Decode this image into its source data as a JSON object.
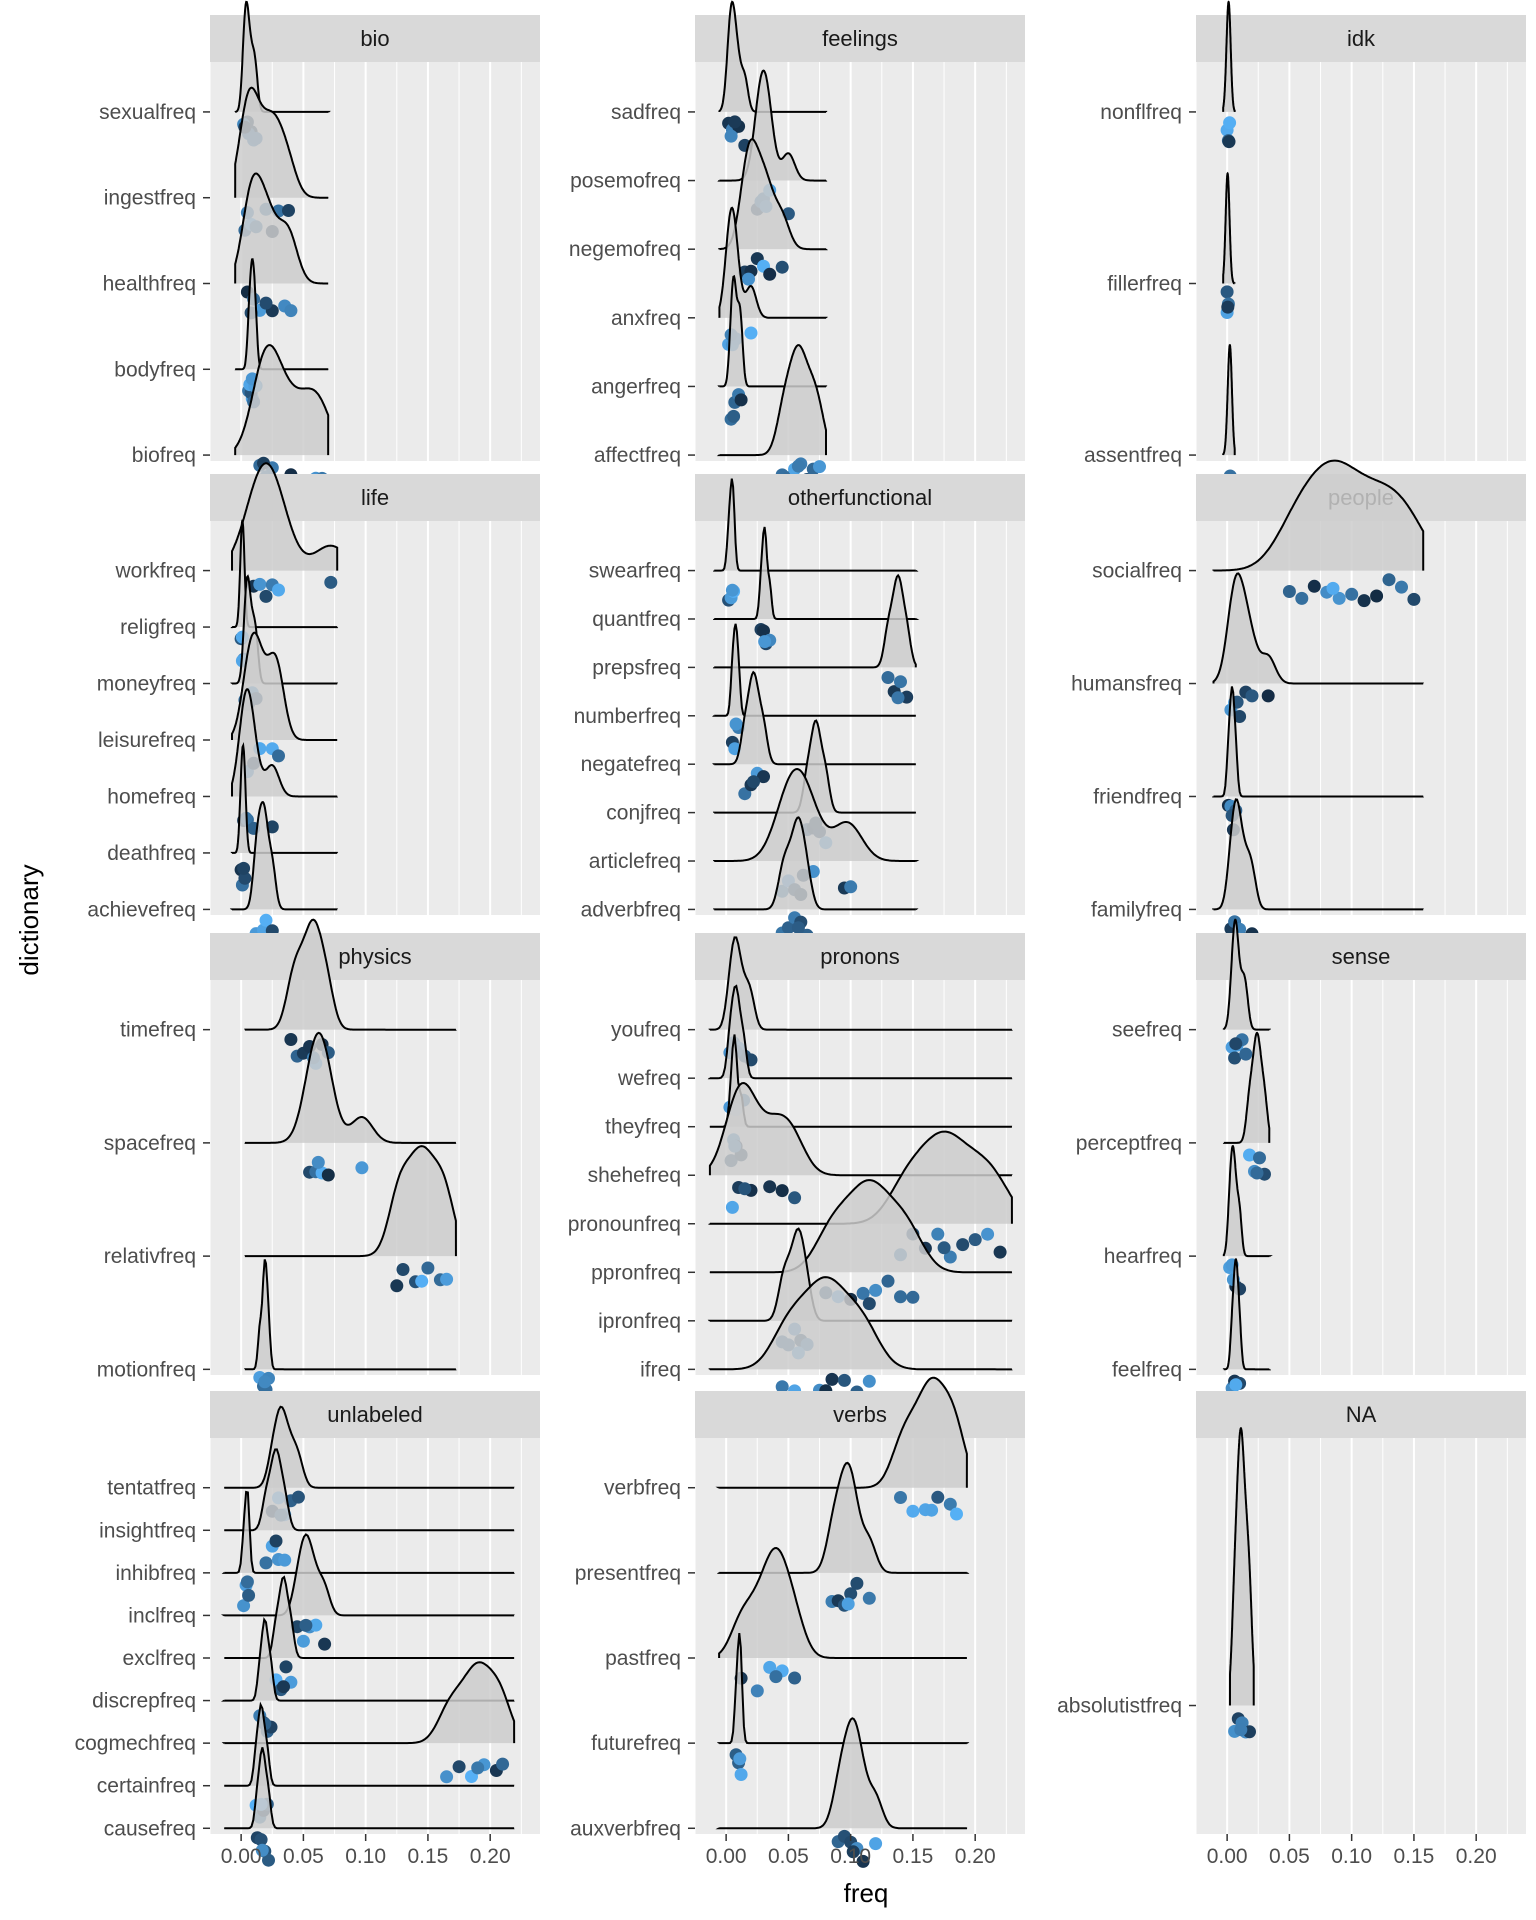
{
  "chart_data": {
    "type": "ridgeline",
    "xlabel": "freq",
    "ylabel": "dictionary",
    "xlim": [
      -0.025,
      0.24
    ],
    "x_ticks": [
      0.0,
      0.05,
      0.1,
      0.15,
      0.2
    ],
    "x_tick_labels": [
      "0.00",
      "0.05",
      "0.10",
      "0.15",
      "0.20"
    ],
    "grid": true,
    "colors": {
      "panel_bg": "#ebebeb",
      "strip_bg": "#d9d9d9",
      "grid": "#ffffff",
      "point_dark": "#132b43",
      "point_light": "#56b1f7",
      "ridge_fill": "#cccccc"
    },
    "facets": [
      {
        "name": "bio",
        "rows": [
          {
            "label": "sexualfreq",
            "x": [
              0.004,
              0.01,
              0.005,
              0.008,
              0.002,
              0.012,
              0.006,
              0.003
            ]
          },
          {
            "label": "ingestfreq",
            "x": [
              0.003,
              0.008,
              0.012,
              0.02,
              0.025,
              0.03,
              0.038,
              0.005
            ]
          },
          {
            "label": "healthfreq",
            "x": [
              0.005,
              0.01,
              0.015,
              0.025,
              0.035,
              0.04,
              0.008,
              0.02
            ]
          },
          {
            "label": "bodyfreq",
            "x": [
              0.006,
              0.009,
              0.012,
              0.008,
              0.01,
              0.007,
              0.011,
              0.009
            ]
          },
          {
            "label": "biofreq",
            "x": [
              0.015,
              0.02,
              0.025,
              0.03,
              0.04,
              0.05,
              0.06,
              0.065,
              0.018
            ]
          }
        ]
      },
      {
        "name": "feelings",
        "rows": [
          {
            "label": "sadfreq",
            "x": [
              0.002,
              0.005,
              0.01,
              0.015,
              0.004,
              0.007
            ]
          },
          {
            "label": "posemofreq",
            "x": [
              0.025,
              0.03,
              0.035,
              0.028,
              0.05,
              0.032
            ]
          },
          {
            "label": "negemofreq",
            "x": [
              0.015,
              0.02,
              0.025,
              0.03,
              0.035,
              0.045,
              0.018
            ]
          },
          {
            "label": "anxfreq",
            "x": [
              0.002,
              0.005,
              0.008,
              0.02,
              0.004
            ]
          },
          {
            "label": "angerfreq",
            "x": [
              0.004,
              0.007,
              0.01,
              0.012,
              0.006
            ]
          },
          {
            "label": "affectfreq",
            "x": [
              0.045,
              0.05,
              0.055,
              0.06,
              0.065,
              0.07,
              0.075,
              0.058
            ]
          }
        ]
      },
      {
        "name": "idk",
        "rows": [
          {
            "label": "nonflfreq",
            "x": [
              0.0,
              0.001,
              0.002,
              0.0015
            ]
          },
          {
            "label": "fillerfreq",
            "x": [
              0.0,
              0.001,
              0.0,
              0.0005
            ]
          },
          {
            "label": "assentfreq",
            "x": [
              0.001,
              0.002,
              0.003,
              0.0025
            ]
          }
        ]
      },
      {
        "name": "life",
        "rows": [
          {
            "label": "workfreq",
            "x": [
              0.01,
              0.015,
              0.02,
              0.025,
              0.03,
              0.072
            ]
          },
          {
            "label": "religfreq",
            "x": [
              0.0,
              0.001,
              0.002,
              0.001
            ]
          },
          {
            "label": "moneyfreq",
            "x": [
              0.003,
              0.006,
              0.009,
              0.012,
              0.005
            ]
          },
          {
            "label": "leisurefreq",
            "x": [
              0.005,
              0.01,
              0.015,
              0.025,
              0.03
            ]
          },
          {
            "label": "homefreq",
            "x": [
              0.002,
              0.005,
              0.01,
              0.025,
              0.004
            ]
          },
          {
            "label": "deathfreq",
            "x": [
              0.0,
              0.001,
              0.003,
              0.002
            ]
          },
          {
            "label": "achievefreq",
            "x": [
              0.012,
              0.015,
              0.018,
              0.02,
              0.025
            ]
          }
        ]
      },
      {
        "name": "otherfunctional",
        "rows": [
          {
            "label": "swearfreq",
            "x": [
              0.002,
              0.004,
              0.006,
              0.005
            ]
          },
          {
            "label": "quantfreq",
            "x": [
              0.028,
              0.03,
              0.032,
              0.035,
              0.031
            ]
          },
          {
            "label": "prepsfreq",
            "x": [
              0.13,
              0.135,
              0.14,
              0.145,
              0.138
            ]
          },
          {
            "label": "numberfreq",
            "x": [
              0.005,
              0.007,
              0.01,
              0.008
            ]
          },
          {
            "label": "negatefreq",
            "x": [
              0.015,
              0.02,
              0.025,
              0.03,
              0.022
            ]
          },
          {
            "label": "conjfreq",
            "x": [
              0.065,
              0.07,
              0.075,
              0.08,
              0.072
            ]
          },
          {
            "label": "articlefreq",
            "x": [
              0.045,
              0.05,
              0.055,
              0.06,
              0.07,
              0.095,
              0.1,
              0.062
            ]
          },
          {
            "label": "adverbfreq",
            "x": [
              0.045,
              0.05,
              0.055,
              0.06,
              0.065,
              0.058
            ]
          }
        ]
      },
      {
        "name": "people",
        "rows": [
          {
            "label": "socialfreq",
            "x": [
              0.05,
              0.06,
              0.07,
              0.08,
              0.09,
              0.1,
              0.11,
              0.12,
              0.13,
              0.14,
              0.15,
              0.085
            ]
          },
          {
            "label": "humansfreq",
            "x": [
              0.003,
              0.006,
              0.01,
              0.015,
              0.02,
              0.033,
              0.008
            ]
          },
          {
            "label": "friendfreq",
            "x": [
              0.001,
              0.003,
              0.005,
              0.007,
              0.004
            ]
          },
          {
            "label": "familyfreq",
            "x": [
              0.003,
              0.006,
              0.01,
              0.015,
              0.02,
              0.008
            ]
          }
        ]
      },
      {
        "name": "physics",
        "rows": [
          {
            "label": "timefreq",
            "x": [
              0.04,
              0.045,
              0.05,
              0.055,
              0.06,
              0.065,
              0.07,
              0.058
            ]
          },
          {
            "label": "spacefreq",
            "x": [
              0.055,
              0.06,
              0.065,
              0.07,
              0.097,
              0.062
            ]
          },
          {
            "label": "relativfreq",
            "x": [
              0.125,
              0.13,
              0.14,
              0.15,
              0.16,
              0.165,
              0.145
            ]
          },
          {
            "label": "motionfreq",
            "x": [
              0.015,
              0.018,
              0.02,
              0.022,
              0.019
            ]
          }
        ]
      },
      {
        "name": "pronons",
        "rows": [
          {
            "label": "youfreq",
            "x": [
              0.003,
              0.006,
              0.01,
              0.015,
              0.02,
              0.008
            ]
          },
          {
            "label": "wefreq",
            "x": [
              0.003,
              0.006,
              0.01,
              0.014,
              0.008
            ]
          },
          {
            "label": "theyfreq",
            "x": [
              0.004,
              0.006,
              0.008,
              0.012,
              0.007
            ]
          },
          {
            "label": "shehefreq",
            "x": [
              0.005,
              0.01,
              0.02,
              0.035,
              0.045,
              0.055,
              0.015
            ]
          },
          {
            "label": "pronounfreq",
            "x": [
              0.14,
              0.15,
              0.16,
              0.17,
              0.18,
              0.19,
              0.2,
              0.21,
              0.22,
              0.175
            ]
          },
          {
            "label": "ppronfreq",
            "x": [
              0.08,
              0.09,
              0.1,
              0.11,
              0.12,
              0.13,
              0.14,
              0.15,
              0.115
            ]
          },
          {
            "label": "ipronfreq",
            "x": [
              0.045,
              0.05,
              0.055,
              0.06,
              0.065,
              0.058
            ]
          },
          {
            "label": "ifreq",
            "x": [
              0.045,
              0.055,
              0.065,
              0.075,
              0.085,
              0.095,
              0.105,
              0.115,
              0.08
            ]
          }
        ]
      },
      {
        "name": "sense",
        "rows": [
          {
            "label": "seefreq",
            "x": [
              0.004,
              0.006,
              0.008,
              0.012,
              0.015,
              0.007
            ]
          },
          {
            "label": "perceptfreq",
            "x": [
              0.018,
              0.022,
              0.026,
              0.03,
              0.024
            ]
          },
          {
            "label": "hearfreq",
            "x": [
              0.002,
              0.004,
              0.007,
              0.01,
              0.005
            ]
          },
          {
            "label": "feelfreq",
            "x": [
              0.004,
              0.006,
              0.008,
              0.01,
              0.007
            ]
          }
        ]
      },
      {
        "name": "unlabeled",
        "rows": [
          {
            "label": "tentatfreq",
            "x": [
              0.025,
              0.03,
              0.035,
              0.04,
              0.046,
              0.032
            ]
          },
          {
            "label": "insightfreq",
            "x": [
              0.02,
              0.025,
              0.03,
              0.035,
              0.028
            ]
          },
          {
            "label": "inhibfreq",
            "x": [
              0.002,
              0.004,
              0.006,
              0.005
            ]
          },
          {
            "label": "inclfreq",
            "x": [
              0.045,
              0.05,
              0.055,
              0.06,
              0.067,
              0.052
            ]
          },
          {
            "label": "exclfreq",
            "x": [
              0.028,
              0.032,
              0.036,
              0.04,
              0.034
            ]
          },
          {
            "label": "discrepfreq",
            "x": [
              0.015,
              0.018,
              0.021,
              0.024,
              0.019
            ]
          },
          {
            "label": "cogmechfreq",
            "x": [
              0.165,
              0.175,
              0.185,
              0.195,
              0.205,
              0.21,
              0.19
            ]
          },
          {
            "label": "certainfreq",
            "x": [
              0.012,
              0.015,
              0.018,
              0.021,
              0.016
            ]
          },
          {
            "label": "causefreq",
            "x": [
              0.013,
              0.016,
              0.019,
              0.022,
              0.017
            ]
          }
        ]
      },
      {
        "name": "verbs",
        "rows": [
          {
            "label": "verbfreq",
            "x": [
              0.14,
              0.15,
              0.16,
              0.17,
              0.18,
              0.185,
              0.165
            ]
          },
          {
            "label": "presentfreq",
            "x": [
              0.085,
              0.09,
              0.095,
              0.1,
              0.105,
              0.115,
              0.098
            ]
          },
          {
            "label": "pastfreq",
            "x": [
              0.012,
              0.025,
              0.035,
              0.045,
              0.055,
              0.04
            ]
          },
          {
            "label": "futurefreq",
            "x": [
              0.008,
              0.01,
              0.012,
              0.011
            ]
          },
          {
            "label": "auxverbfreq",
            "x": [
              0.09,
              0.095,
              0.1,
              0.105,
              0.11,
              0.12,
              0.102
            ]
          }
        ]
      },
      {
        "name": "NA",
        "rows": [
          {
            "label": "absolutistfreq",
            "x": [
              0.006,
              0.009,
              0.012,
              0.015,
              0.018,
              0.011
            ]
          }
        ]
      }
    ]
  }
}
